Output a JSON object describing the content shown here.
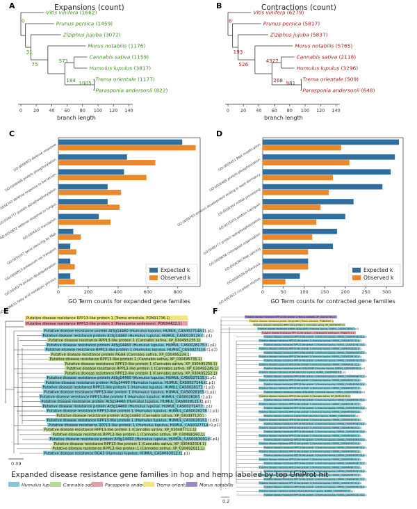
{
  "panels": {
    "A": {
      "letter": "A",
      "title": "Expansions (count)",
      "color": "#3f8f1f",
      "xlabel": "branch length",
      "ticks": [
        "0",
        "20",
        "40",
        "60",
        "80",
        "100",
        "120",
        "140"
      ],
      "species": [
        {
          "name": "Vitis vinifera",
          "count": "(1662)"
        },
        {
          "name": "Prunus persica",
          "count": "(1459)"
        },
        {
          "name": "Ziziphus jujuba",
          "count": "(3072)"
        },
        {
          "name": "Morus notabilis",
          "count": "(1176)"
        },
        {
          "name": "Cannabis sativa",
          "count": "(1159)"
        },
        {
          "name": "Humulus lupulus",
          "count": "(3817)"
        },
        {
          "name": "Trema orientale",
          "count": "(1177)"
        },
        {
          "name": "Parasponia andersonii",
          "count": "(822)"
        }
      ],
      "nodes": [
        "0",
        "31",
        "75",
        "571",
        "184",
        "1005"
      ]
    },
    "B": {
      "letter": "B",
      "title": "Contractions (count)",
      "color": "#a31e1e",
      "xlabel": "branch length",
      "ticks": [
        "0",
        "20",
        "40",
        "60",
        "80",
        "100",
        "120",
        "140"
      ],
      "species": [
        {
          "name": "Vitis vinifera",
          "count": "(6279)"
        },
        {
          "name": "Prunus persica",
          "count": "(5817)"
        },
        {
          "name": "Ziziphus jujuba",
          "count": "(5837)"
        },
        {
          "name": "Morus notabilis",
          "count": "(5765)"
        },
        {
          "name": "Cannabis sativa",
          "count": "(2118)"
        },
        {
          "name": "Humulus lupulus",
          "count": "(3296)"
        },
        {
          "name": "Trema orientale",
          "count": "(509)"
        },
        {
          "name": "Parasponia andersonii",
          "count": "(648)"
        }
      ],
      "nodes": [
        "8",
        "193",
        "526",
        "4327",
        "268",
        "981"
      ]
    },
    "C": {
      "letter": "C",
      "xlabel": "GO Term counts for expanded gene families",
      "ticks": [
        "0",
        "200",
        "400",
        "600",
        "800"
      ],
      "legend": [
        "Expected k",
        "Observed k"
      ],
      "colors": {
        "expected": "#2f6f9f",
        "observed": "#e8892b"
      }
    },
    "D": {
      "letter": "D",
      "xlabel": "GO Term counts for contracted gene families",
      "ticks": [
        "0",
        "50",
        "100",
        "150",
        "200",
        "250",
        "300"
      ],
      "legend": [
        "Expected k",
        "Observed k"
      ]
    },
    "E": {
      "letter": "E",
      "scale": "0.09",
      "top_leaves": [
        {
          "text": "Putative disease resistance RPP13-like protein 1 (Trema orientale, PON91736.1)",
          "color": "#f3e57a"
        },
        {
          "text": "Putative disease resistance RPP13-like protein 1 (Parasponia andersonii, PON34422.1)",
          "color": "#e89aa6"
        }
      ],
      "leaves": [
        {
          "text": "Putative disease resistance protein At3g14460 (Humulus lupulus, HUMUL_CAS0027148.t1.p1)",
          "color": "#7dc9d6"
        },
        {
          "text": "Putative disease resistance protein At3g14460 (Humulus lupulus, HUMUL_CAS0028120.t1.p1)",
          "color": "#7dc9d6"
        },
        {
          "text": "Putative disease resistance RPP13-like protein 1 (Cannabis sativa, XP_030495235.1)",
          "color": "#b7d98f"
        },
        {
          "text": "Putative disease resistance protein At3g14460 (Humulus lupulus, HUMUL_CAS0028175.t1.p1)",
          "color": "#7dc9d6"
        },
        {
          "text": "Putative disease resistance RPP13-like protein 1 (Humulus lupulus, HUMUL_CAS0027116.t1.p1)",
          "color": "#7dc9d6"
        },
        {
          "text": "Putative disease resistance protein RGA4 (Cannabis sativa, XP_030495234.1)",
          "color": "#b7d98f"
        },
        {
          "text": "Putative disease resistance RPP13-like protein 1 (Cannabis sativa, XP_030495735.1)",
          "color": "#b7d98f"
        },
        {
          "text": "Putative disease resistance RPP13-like protein 1 (Cannabis sativa, XP_030495256.1)",
          "color": "#b7d98f"
        },
        {
          "text": "Putative disease resistance RPP13-like protein 1 (Cannabis sativa, XP_030495249.1)",
          "color": "#b7d98f"
        },
        {
          "text": "Putative disease resistance RPP13-like protein 1 (Cannabis sativa, XP_030495252.1)",
          "color": "#b7d98f"
        },
        {
          "text": "Putative disease resistance protein At3g14460 (Humulus lupulus, HUMUL_CAS0027115.t1.p1)",
          "color": "#7dc9d6"
        },
        {
          "text": "Putative disease resistance protein At3g14460 (Humulus lupulus, HUMUL_CAS0027146.t1.p1)",
          "color": "#7dc9d6"
        },
        {
          "text": "Putative disease resistance RPP13-like protein 1 (Humulus lupulus, HUMUL_CAS0028173.t1.p1)",
          "color": "#7dc9d6"
        },
        {
          "text": "Putative disease resistance RPP13-like protein 1 (Humulus lupulus, HUMUL_CAS0028165.t1.p1)",
          "color": "#7dc9d6"
        },
        {
          "text": "Putative disease resistance RPP13-like protein 1 (Humulus lupulus, HUMUL_CAS0028281.t1.p1)",
          "color": "#7dc9d6"
        },
        {
          "text": "Putative disease resistance protein At3g14460 (Humulus lupulus, HUMUL_CAS0028121.t1.p1)",
          "color": "#7dc9d6"
        },
        {
          "text": "Putative disease resistance protein At3g14460 (Humulus lupulus, HUMUL_CAS0027147.t1.p1)",
          "color": "#7dc9d6"
        },
        {
          "text": "Putative disease resistance RPP13-like protein 1 (Humulus lupulus, HUMUL_CAS0028278.t1.p1)",
          "color": "#7dc9d6"
        },
        {
          "text": "Putative disease resistance protein At3g14460 (Cannabis sativa, XP_030497120.1)",
          "color": "#b7d98f"
        },
        {
          "text": "Putative disease resistance RPP13-like protein 1 (Humulus lupulus, HUMUL_CAS0028151.t1.p1)",
          "color": "#7dc9d6"
        },
        {
          "text": "Putative disease resistance RPP13-like protein 1 (Humulus lupulus, HUMUL_CAS0027714.t1.p1)",
          "color": "#7dc9d6"
        },
        {
          "text": "Putative disease resistance RPP13-like protein 1 (Cannabis sativa, XP_030487711.1)",
          "color": "#b7d98f"
        },
        {
          "text": "Putative disease resistance RPP13-like protein 1 (Cannabis sativa, XP_030488160.1)",
          "color": "#b7d98f"
        },
        {
          "text": "Putative disease resistance protein At3g14460 (Humulus lupulus, HUMUL_CAS0063001.t1.p1)",
          "color": "#7dc9d6"
        },
        {
          "text": "Putative disease resistance RPP13-like protein 1 (Cannabis sativa, XP_030492014.1)",
          "color": "#b7d98f"
        },
        {
          "text": "Putative disease resistance RPP13-like protein 1 (Cannabis sativa, XP_030492011.1)",
          "color": "#b7d98f"
        },
        {
          "text": "Putative disease resistance RGA3 (Humulus lupulus, HUMUL_CAS0063012.t1.p1)",
          "color": "#7dc9d6"
        }
      ]
    },
    "F": {
      "letter": "F",
      "scale": "0.2",
      "leaves": [
        {
          "text": "Putative disease resistance RPP13-like protein 1 (Morus notabilis, XP_024021750.1)",
          "color": "#9b86c7"
        },
        {
          "text": "Putative disease resistance protein At3g14460 (Trema orientale, PON88289.1)",
          "color": "#f3e57a"
        },
        {
          "text": "Putative disease resistance RPP13-like protein 1 (Cannabis sativa, XP_030510477.1)",
          "color": "#b7d98f"
        },
        {
          "text": "Putative disease resistance protein At3g14460 (Humulus lupulus, HUMUL_CAS0042899.t1.p1)",
          "color": "#7dc9d6"
        },
        {
          "text": "Putative disease resistance RPP13-like protein 1 (Parasponia andersonii, PON46751.1)",
          "color": "#e89aa6"
        },
        {
          "text": "Putative disease resistance RPP13-like protein 1 (Humulus lupulus, HUMUL_CAS0042915.t1.p1)",
          "color": "#7dc9d6"
        },
        {
          "text": "Putative disease resistance RPP13-like protein 1 (Humulus lupulus, HUMUL_CAS0042927.t1.p1)",
          "color": "#7dc9d6"
        },
        {
          "text": "Putative disease resistance RPP13-like protein 1 (Humulus lupulus, HUMUL_CAS0042941.t1.p1)",
          "color": "#7dc9d6"
        },
        {
          "text": "Putative disease resistance RPP13-like protein 1 (Humulus lupulus, HUMUL_CAS0035223.t1.p1)",
          "color": "#7dc9d6"
        },
        {
          "text": "Putative disease resistance RPP13-like protein 1 (Humulus lupulus, HUMUL_CAS0042910.t1.p1)",
          "color": "#7dc9d6"
        },
        {
          "text": "Putative disease resistance RPP13-like protein 1 (Humulus lupulus, HUMUL_CAS0042891.t1.p1)",
          "color": "#7dc9d6"
        },
        {
          "text": "Putative disease resistance RPP13-like protein 1 (Humulus lupulus, HUMUL_CAS0042913.t1.p1)",
          "color": "#7dc9d6"
        },
        {
          "text": "Putative disease resistance RPP13-like protein 1 (Humulus lupulus, HUMUL_CAS0040931.t1.p1)",
          "color": "#7dc9d6"
        },
        {
          "text": "Putative disease resistance protein At3g14460 (Humulus lupulus, HUMUL_CAS0040934.t1.p1)",
          "color": "#7dc9d6"
        },
        {
          "text": "Putative disease resistance RGA4 (Humulus lupulus, HUMUL_CAS0040928.t1.p1)",
          "color": "#7dc9d6"
        },
        {
          "text": "Putative disease resistance RPP13-like protein 1 (Humulus lupulus, HUMUL_CAS0040930.t1.p1)",
          "color": "#7dc9d6"
        },
        {
          "text": "Putative disease resistance RPP13-like protein 1 (Humulus lupulus, HUMUL_CAS0040927.t1.p1)",
          "color": "#7dc9d6"
        },
        {
          "text": "Putative disease resistance RPP13-like protein 1 (Humulus lupulus, HUMUL_CAS0040939.t1.p1)",
          "color": "#7dc9d6"
        },
        {
          "text": "Putative disease resistance RPP13-like protein 1 (Humulus lupulus, HUMUL_CAS0040925.t1.p1)",
          "color": "#7dc9d6"
        },
        {
          "text": "Putative disease resistance protein At3g14460 (Humulus lupulus, HUMUL_CAS0040906.t1.p1)",
          "color": "#7dc9d6"
        },
        {
          "text": "Putative disease resistance RPP13-like protein 1 (Cannabis sativa, XP_030510476.1)",
          "color": "#b7d98f"
        },
        {
          "text": "Putative disease resistance RPP13-like protein 1 (Humulus lupulus, HUMUL_CAS0040911.t1.p1)",
          "color": "#7dc9d6"
        },
        {
          "text": "Putative disease resistance RPP13-like protein 1 (Humulus lupulus, HUMUL_CAS0022241.t1.p1)",
          "color": "#7dc9d6"
        },
        {
          "text": "Putative disease resistance RPP13-like protein 1 (Humulus lupulus, HUMUL_CAS0040905.t1.p1)",
          "color": "#7dc9d6"
        },
        {
          "text": "Putative disease resistance RPP13-like protein 1 (Humulus lupulus, HUMUL_CAS0040926.t1.p1)",
          "color": "#7dc9d6"
        },
        {
          "text": "Putative disease resistance protein RGA4 (Humulus lupulus, HUMUL_CAS0040923.t1.p1)",
          "color": "#7dc9d6"
        },
        {
          "text": "Putative disease resistance RPP13-like protein 1 (Humulus lupulus, HUMUL_CAS0040919.t1.p1)",
          "color": "#7dc9d6"
        },
        {
          "text": "Putative disease resistance RPP13-like protein 1 (Humulus lupulus, HUMUL_CAS0040937.t1.p1)",
          "color": "#7dc9d6"
        },
        {
          "text": "Putative disease resistance RPP13-like protein 1 (Humulus lupulus, HUMUL_CAS0040942.t1.p1)",
          "color": "#7dc9d6"
        },
        {
          "text": "Putative disease resistance RPP13-like protein 1 (Humulus lupulus, HUMUL_CAS0040913.t1.p1)",
          "color": "#7dc9d6"
        },
        {
          "text": "Putative disease resistance RPP13-like protein 1 (Humulus lupulus, HUMUL_CAS0040936.t1.p1)",
          "color": "#7dc9d6"
        },
        {
          "text": "Putative disease resistance RPP13-like protein 1 (Humulus lupulus, HUMUL_CAS0040908.t1.p1)",
          "color": "#7dc9d6"
        },
        {
          "text": "Putative disease resistance RPP13-like protein 1 (Humulus lupulus, HUMUL_CAS0040920.t1.p1)",
          "color": "#7dc9d6"
        },
        {
          "text": "Putative disease resistance RPP13-like protein 1 (Humulus lupulus, HUMUL_CAS0040909.t1.p1)",
          "color": "#7dc9d6"
        },
        {
          "text": "Putative disease resistance RPP13-like protein 1 (Humulus lupulus, HUMUL_CAS0040924.t1.p1)",
          "color": "#7dc9d6"
        },
        {
          "text": "Putative disease resistance RPP13-like protein 1 (Humulus lupulus, HUMUL_CAS0040921.t1.p1)",
          "color": "#7dc9d6"
        },
        {
          "text": "Putative disease resistance RPP13-like protein 1 (Humulus lupulus, HUMUL_CAS0040929.t1.p1)",
          "color": "#7dc9d6"
        },
        {
          "text": "Putative disease resistance RPP13-like protein 1 (Humulus lupulus, HUMUL_CAS0040932.t1.p1)",
          "color": "#7dc9d6"
        },
        {
          "text": "Putative disease resistance RPP13-like protein 1 (Humulus lupulus, HUMUL_CAS0040901.t1.p1)",
          "color": "#7dc9d6"
        },
        {
          "text": "Putative disease resistance RPP13-like protein 1 (Humulus lupulus, HUMUL_CAS0040917.t1.p1)",
          "color": "#7dc9d6"
        },
        {
          "text": "Putative disease resistance RPP13-like protein 1 (Humulus lupulus, HUMUL_CAS0040935.t1.p1)",
          "color": "#7dc9d6"
        },
        {
          "text": "Putative disease resistance RPP13-like protein 1 (Humulus lupulus, HUMUL_CAS0040903.t1.p1)",
          "color": "#7dc9d6"
        },
        {
          "text": "Putative disease resistance RPP13-like protein 1 (Humulus lupulus, HUMUL_CAS0041957.t1.p1)",
          "color": "#7dc9d6"
        },
        {
          "text": "Putative disease resistance RPP13-like protein 1 (Humulus lupulus, HUMUL_CAS0040904.t1.p1)",
          "color": "#7dc9d6"
        },
        {
          "text": "Putative disease resistance protein RGA4 (Humulus lupulus, HUMUL_CAS0041937.t1.p1)",
          "color": "#7dc9d6"
        },
        {
          "text": "Putative disease resistance RPP13-like protein 1 (Humulus lupulus, HUMUL_CAS0052211.t1.p1)",
          "color": "#7dc9d6"
        }
      ]
    }
  },
  "legend": {
    "title": "Expanded disease resistance gene families in hop and hemp labeled by top UniProt hit",
    "items": [
      {
        "label": "Humulus lupulus",
        "color": "#7dc9d6"
      },
      {
        "label": "Cannabis sativa",
        "color": "#b7d98f"
      },
      {
        "label": "Parasponia andersonii",
        "color": "#e89aa6"
      },
      {
        "label": "Trema orientale",
        "color": "#f3e57a"
      },
      {
        "label": "Morus notabilis",
        "color": "#9b86c7"
      }
    ]
  },
  "chart_data": [
    {
      "type": "bar",
      "panel": "C",
      "orientation": "horizontal",
      "categories": [
        "GO:0006952 defense response",
        "GO:0006468 protein phosphorylation",
        "GO:0042742 defense response to bacterium",
        "GO:0046777 protein autophosphorylation",
        "GO:0050832 defense response to fungus",
        "GO:0006412 translation",
        "GO:0031047 gene silencing by RNA",
        "GO:0006813 potassium ion transport",
        "GO:0016579 protein deubiquitination",
        "GO:0006631 fatty acid metabolic process"
      ],
      "series": [
        {
          "name": "Expected k",
          "values": [
            830,
            460,
            440,
            330,
            330,
            270,
            100,
            80,
            80,
            80
          ]
        },
        {
          "name": "Observed k",
          "values": [
            920,
            650,
            590,
            420,
            410,
            350,
            150,
            120,
            110,
            110
          ]
        }
      ],
      "xlabel": "GO Term counts for expanded gene families",
      "xlim": [
        0,
        950
      ]
    },
    {
      "type": "bar",
      "panel": "D",
      "orientation": "horizontal",
      "categories": [
        "GO:0009451 RNA modification",
        "GO:0006468 protein phosphorylation",
        "GO:0009793 embryo development ending in seed dormancy",
        "GO:0006397 mRNA processing",
        "GO:0015031 protein transport",
        "GO:0046777 protein autophosphorylation",
        "GO:0009658 chloroplast organization",
        "GO:0008380 RNA splicing",
        "GO:0006508 proteolysis",
        "GO:0007623 circadian rhythm"
      ],
      "series": [
        {
          "name": "Expected k",
          "values": [
            330,
            320,
            310,
            290,
            220,
            200,
            180,
            170,
            110,
            90
          ]
        },
        {
          "name": "Observed k",
          "values": [
            190,
            210,
            170,
            160,
            140,
            130,
            120,
            110,
            110,
            55
          ]
        }
      ],
      "xlabel": "GO Term counts for contracted gene families",
      "xlim": [
        0,
        340
      ]
    }
  ]
}
